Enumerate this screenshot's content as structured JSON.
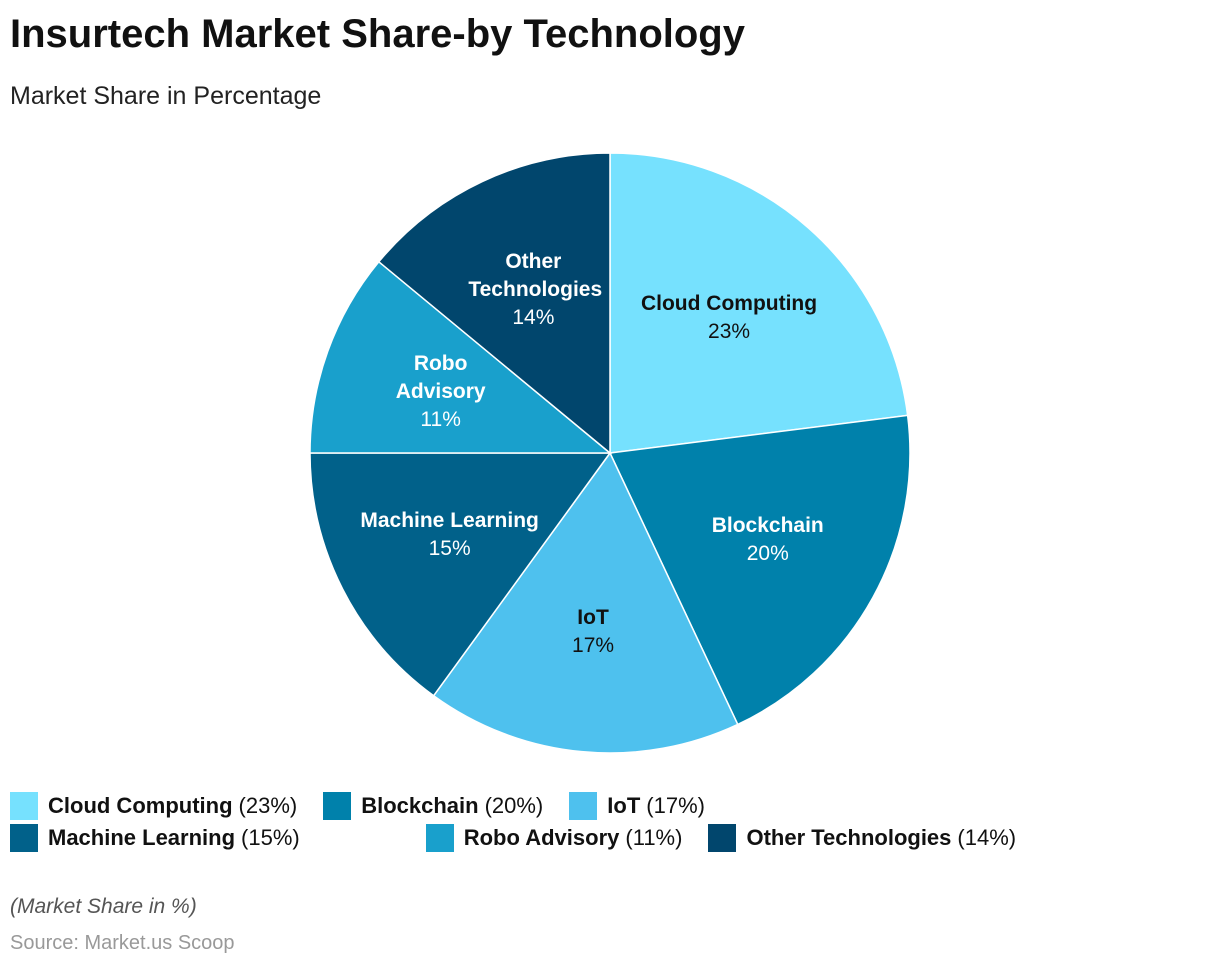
{
  "chart_data": {
    "type": "pie",
    "title": "Insurtech Market Share-by Technology",
    "subtitle": "Market Share in Percentage",
    "categories": [
      "Cloud Computing",
      "Blockchain",
      "IoT",
      "Machine Learning",
      "Robo Advisory",
      "Other Technologies"
    ],
    "values": [
      23,
      20,
      17,
      15,
      11,
      14
    ],
    "value_labels": [
      "23%",
      "20%",
      "17%",
      "15%",
      "11%",
      "14%"
    ],
    "legend_labels": [
      "(23%)",
      "(20%)",
      "(17%)",
      "(15%)",
      "(11%)",
      "(14%)"
    ],
    "colors": [
      "#76e1fe",
      "#0081ab",
      "#4ec1ee",
      "#01618a",
      "#19a0cc",
      "#01466d"
    ],
    "note": "(Market Share in %)",
    "source": "Source: Market.us Scoop"
  }
}
